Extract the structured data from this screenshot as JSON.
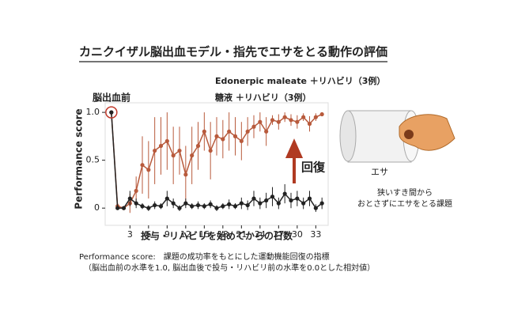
{
  "chart_data": {
    "type": "line",
    "title": "カニクイザル脳出血モデル・指先でエサをとる動作の評価",
    "x": [
      0,
      1,
      2,
      3,
      4,
      5,
      6,
      7,
      8,
      9,
      10,
      11,
      12,
      13,
      14,
      15,
      16,
      17,
      18,
      19,
      20,
      21,
      22,
      23,
      24,
      25,
      26,
      27,
      28,
      29,
      30,
      31,
      32,
      33,
      34
    ],
    "xlim": [
      -1,
      35
    ],
    "xticks": [
      3,
      6,
      9,
      12,
      15,
      18,
      21,
      24,
      27,
      30,
      33
    ],
    "ylim": [
      -0.18,
      1.1
    ],
    "yticks": [
      {
        "value": 1,
        "label": "1.0"
      },
      0.5,
      0
    ],
    "x_label": "投与・リハビリを始めてからの日数",
    "y_label": "Performance score",
    "series": [
      {
        "name": "Edonerpic maleate ＋リハビリ（3例）",
        "color": "#b85a3c",
        "values": [
          1.0,
          0.02,
          0.0,
          0.05,
          0.18,
          0.45,
          0.4,
          0.6,
          0.65,
          0.7,
          0.55,
          0.6,
          0.35,
          0.55,
          0.65,
          0.8,
          0.6,
          0.75,
          0.72,
          0.8,
          0.75,
          0.7,
          0.8,
          0.85,
          0.9,
          0.8,
          0.92,
          0.9,
          0.95,
          0.92,
          0.9,
          0.95,
          0.88,
          0.95,
          0.98
        ],
        "errors": [
          0,
          0.03,
          0.02,
          0.1,
          0.15,
          0.3,
          0.3,
          0.35,
          0.3,
          0.3,
          0.3,
          0.25,
          0.3,
          0.3,
          0.25,
          0.2,
          0.3,
          0.2,
          0.2,
          0.2,
          0.2,
          0.2,
          0.15,
          0.12,
          0.1,
          0.15,
          0.05,
          0.08,
          0.05,
          0.06,
          0.07,
          0.04,
          0.08,
          0.04,
          0.02
        ]
      },
      {
        "name": "糖液 ＋リハビリ（3例）",
        "color": "#222222",
        "values": [
          1.0,
          0.0,
          0.0,
          0.1,
          0.05,
          0.02,
          0.0,
          0.03,
          0.02,
          0.1,
          0.05,
          0.0,
          0.05,
          0.02,
          0.03,
          0.02,
          0.04,
          0.0,
          0.02,
          0.04,
          0.02,
          0.05,
          0.03,
          0.1,
          0.05,
          0.08,
          0.12,
          0.05,
          0.15,
          0.08,
          0.1,
          0.05,
          0.1,
          0.0,
          0.05
        ],
        "errors": [
          0,
          0.02,
          0.02,
          0.08,
          0.05,
          0.03,
          0.03,
          0.04,
          0.03,
          0.08,
          0.05,
          0.03,
          0.05,
          0.03,
          0.04,
          0.03,
          0.04,
          0.03,
          0.03,
          0.05,
          0.03,
          0.06,
          0.05,
          0.08,
          0.06,
          0.08,
          0.1,
          0.06,
          0.1,
          0.08,
          0.08,
          0.06,
          0.08,
          0.04,
          0.06
        ]
      }
    ],
    "annotations": {
      "pre": "脳出血前",
      "recovery": "回復"
    }
  },
  "illustration": {
    "label": "エサ",
    "caption": [
      "狭いすき間から",
      "おとさずにエサをとる課題"
    ]
  },
  "footnote": [
    "Performance score:　課題の成功率をもとにした運動機能回復の指標",
    "（脳出血前の水準を1.0, 脳出血後で投与・リハビリ前の水準を0.0とした相対値）"
  ]
}
